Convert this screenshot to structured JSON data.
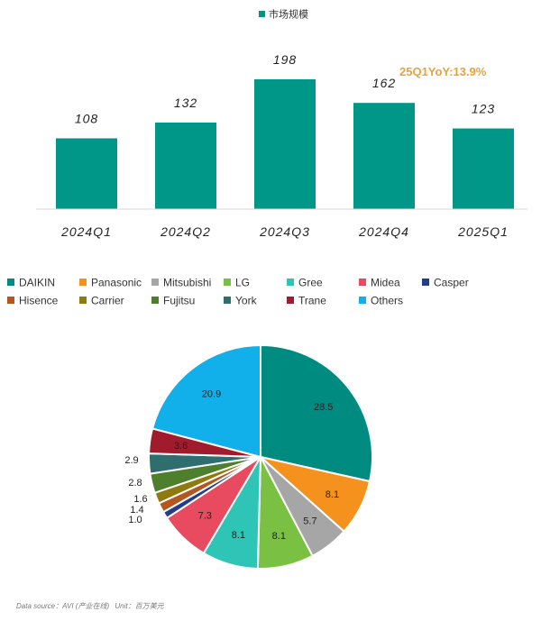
{
  "chart_data": [
    {
      "type": "bar",
      "legend": [
        "市场规模"
      ],
      "series": [
        {
          "name": "市场规模",
          "values": [
            108,
            132,
            198,
            162,
            123
          ]
        }
      ],
      "categories": [
        "2024Q1",
        "2024Q2",
        "2024Q3",
        "2024Q4",
        "2025Q1"
      ],
      "annotation": "25Q1YoY:13.9%",
      "ylim": [
        0,
        230
      ],
      "grid": false,
      "legend_position": "top",
      "colors": {
        "bar": "#009688",
        "annotation": "#E8A33D"
      }
    },
    {
      "type": "pie",
      "labels": [
        "DAIKIN",
        "Panasonic",
        "Mitsubishi",
        "LG",
        "Gree",
        "Midea",
        "Casper",
        "Hisence",
        "Carrier",
        "Fujitsu",
        "York",
        "Trane",
        "Others"
      ],
      "values": [
        28.5,
        8.1,
        5.7,
        8.1,
        8.1,
        7.3,
        1.0,
        1.4,
        1.6,
        2.8,
        2.9,
        3.6,
        20.9
      ],
      "value_labels": [
        "28.5",
        "8.1",
        "5.7",
        "8.1",
        "8.1",
        "7.3",
        "1.0",
        "1.4",
        "1.6",
        "2.8",
        "2.9",
        "3.6",
        "20.9"
      ],
      "colors": [
        "#008B80",
        "#F5921E",
        "#A6A6A6",
        "#7AC143",
        "#2EC4B6",
        "#E84A5F",
        "#243C8E",
        "#B5561E",
        "#8F7A10",
        "#4E7F2C",
        "#2F6E6E",
        "#A01C2C",
        "#12B0EA"
      ],
      "legend_position": "top"
    }
  ],
  "footer": {
    "source": "Data source：AVI (产业在线)",
    "unit": "Unit：百万美元"
  }
}
